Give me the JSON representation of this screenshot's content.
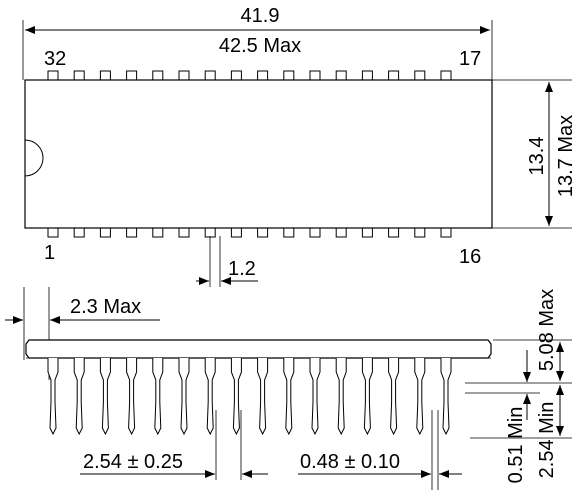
{
  "top_view": {
    "length_nominal": "41.9",
    "length_max": "42.5 Max",
    "width_nominal": "13.4",
    "width_max": "13.7 Max",
    "pin_label_top_left": "32",
    "pin_label_top_right": "17",
    "pin_label_bottom_left": "1",
    "pin_label_bottom_right": "16",
    "pin_width": "1.2",
    "pins_per_side": 16
  },
  "side_view": {
    "offset_max": "2.3 Max",
    "height_max": "5.08 Max",
    "standoff_min": "0.51 Min",
    "lead_length_min": "2.54 Min",
    "pitch": "2.54 ± 0.25",
    "lead_width": "0.48 ± 0.10"
  }
}
